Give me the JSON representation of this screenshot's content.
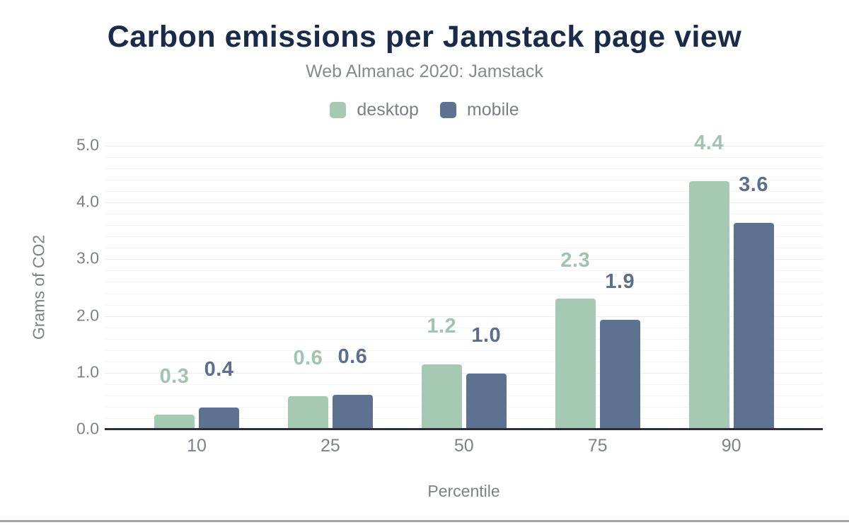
{
  "page": {
    "bottom_bar_color": "#a6a6a6"
  },
  "header": {
    "title": "Carbon emissions per Jamstack page view",
    "subtitle": "Web Almanac 2020: Jamstack"
  },
  "chart_data": {
    "type": "bar",
    "title": "Carbon emissions per Jamstack page view",
    "subtitle": "Web Almanac 2020: Jamstack",
    "xlabel": "Percentile",
    "ylabel": "Grams of CO2",
    "categories": [
      "10",
      "25",
      "50",
      "75",
      "90"
    ],
    "series": [
      {
        "name": "desktop",
        "color": "#a6c9b4",
        "label_color": "#a0c5ae",
        "values": [
          0.26,
          0.58,
          1.15,
          2.31,
          4.38
        ],
        "labels": [
          "0.3",
          "0.6",
          "1.2",
          "2.3",
          "4.4"
        ]
      },
      {
        "name": "mobile",
        "color": "#5d7190",
        "label_color": "#5a6e8e",
        "values": [
          0.39,
          0.61,
          0.98,
          1.93,
          3.64
        ],
        "labels": [
          "0.4",
          "0.6",
          "1.0",
          "1.9",
          "3.6"
        ]
      }
    ],
    "ylim": [
      0,
      5
    ],
    "yticks": [
      0,
      1,
      2,
      3,
      4,
      5
    ],
    "ytick_labels": [
      "0.0",
      "1.0",
      "2.0",
      "3.0",
      "4.0",
      "5.0"
    ],
    "minor_grid_step": 0.2,
    "grid": true,
    "legend_position": "top",
    "axis_color": "#2b2e36",
    "text_color": "#7e8185"
  }
}
